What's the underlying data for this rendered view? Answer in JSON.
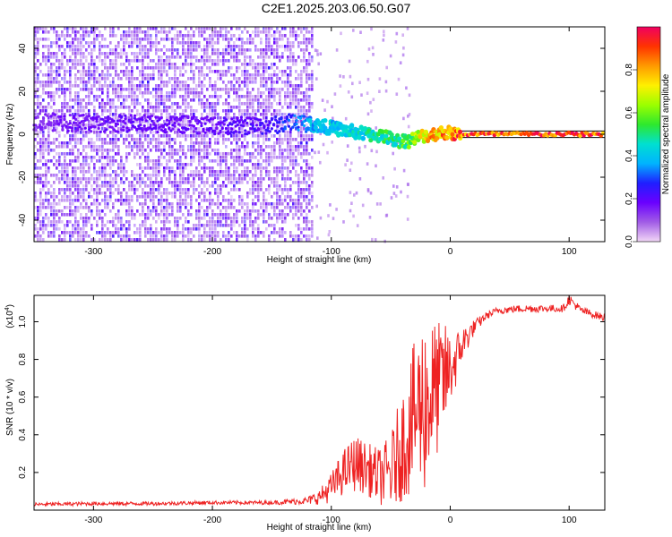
{
  "page_title": "C2E1.2025.203.06.50.G07",
  "chart_data": [
    {
      "type": "heatmap",
      "title": "C2E1.2025.203.06.50.G07",
      "xlabel": "Height of straight line (km)",
      "ylabel": "Frequency (Hz)",
      "xlim": [
        -350,
        130
      ],
      "ylim": [
        -50,
        50
      ],
      "xticks": [
        -300,
        -200,
        -100,
        0,
        100
      ],
      "yticks": [
        -40,
        -20,
        0,
        20,
        40
      ],
      "grid": false,
      "colorbar": {
        "label": "Normalized spectral amplitude",
        "range": [
          0,
          1
        ],
        "ticks": [
          "0.0",
          "0.2",
          "0.4",
          "0.6",
          "0.8"
        ],
        "colormap": [
          "#f2d7f6",
          "#a15ce6",
          "#6a00ff",
          "#1f1fff",
          "#00b4ff",
          "#00e0d0",
          "#2ee82e",
          "#9bff00",
          "#fff000",
          "#ff9a00",
          "#ff3300",
          "#f00060"
        ]
      },
      "noise_region_x": [
        -350,
        -115
      ],
      "noise_region_y": [
        -50,
        50
      ],
      "signal_track": {
        "x": [
          -350,
          -300,
          -250,
          -200,
          -150,
          -130,
          -110,
          -90,
          -70,
          -55,
          -45,
          -35,
          -25,
          -15,
          -5,
          5,
          50,
          130
        ],
        "y": [
          6,
          5,
          5,
          4,
          4,
          6,
          4,
          2,
          0,
          -1,
          -3,
          -3,
          -1,
          0,
          1,
          0,
          0,
          0
        ],
        "amplitude": [
          0.15,
          0.2,
          0.2,
          0.2,
          0.25,
          0.35,
          0.45,
          0.45,
          0.5,
          0.55,
          0.55,
          0.6,
          0.75,
          0.85,
          0.9,
          0.95,
          1.0,
          1.0
        ]
      },
      "reference_lines_y": [
        1.5,
        -1.5
      ]
    },
    {
      "type": "line",
      "xlabel": "Height of straight line (km)",
      "ylabel": "SNR (10 * v/v)",
      "y_scale_label": "(x10",
      "y_scale_exponent": "4",
      "xlim": [
        -350,
        130
      ],
      "ylim": [
        0.0,
        1.14
      ],
      "xticks": [
        -300,
        -200,
        -100,
        0,
        100
      ],
      "yticks": [
        "0.2",
        "0.4",
        "0.6",
        "0.8",
        "1.0"
      ],
      "grid": false,
      "series": [
        {
          "color": "#ee2222",
          "x": [
            -350,
            -300,
            -250,
            -200,
            -150,
            -120,
            -110,
            -100,
            -90,
            -80,
            -70,
            -60,
            -50,
            -45,
            -40,
            -35,
            -30,
            -25,
            -20,
            -15,
            -10,
            -5,
            0,
            5,
            10,
            20,
            30,
            40,
            60,
            80,
            95,
            100,
            110,
            120,
            130
          ],
          "y": [
            0.03,
            0.035,
            0.035,
            0.04,
            0.04,
            0.05,
            0.07,
            0.12,
            0.2,
            0.25,
            0.22,
            0.18,
            0.2,
            0.28,
            0.35,
            0.42,
            0.5,
            0.55,
            0.58,
            0.62,
            0.65,
            0.7,
            0.75,
            0.8,
            0.88,
            0.97,
            1.03,
            1.06,
            1.07,
            1.07,
            1.07,
            1.12,
            1.06,
            1.04,
            1.02
          ],
          "noise_amplitude": [
            0.01,
            0.01,
            0.01,
            0.01,
            0.01,
            0.02,
            0.04,
            0.08,
            0.12,
            0.15,
            0.14,
            0.15,
            0.2,
            0.25,
            0.3,
            0.35,
            0.4,
            0.45,
            0.5,
            0.4,
            0.35,
            0.3,
            0.2,
            0.15,
            0.1,
            0.04,
            0.02,
            0.02,
            0.02,
            0.02,
            0.02,
            0.03,
            0.02,
            0.02,
            0.02
          ]
        }
      ]
    }
  ]
}
